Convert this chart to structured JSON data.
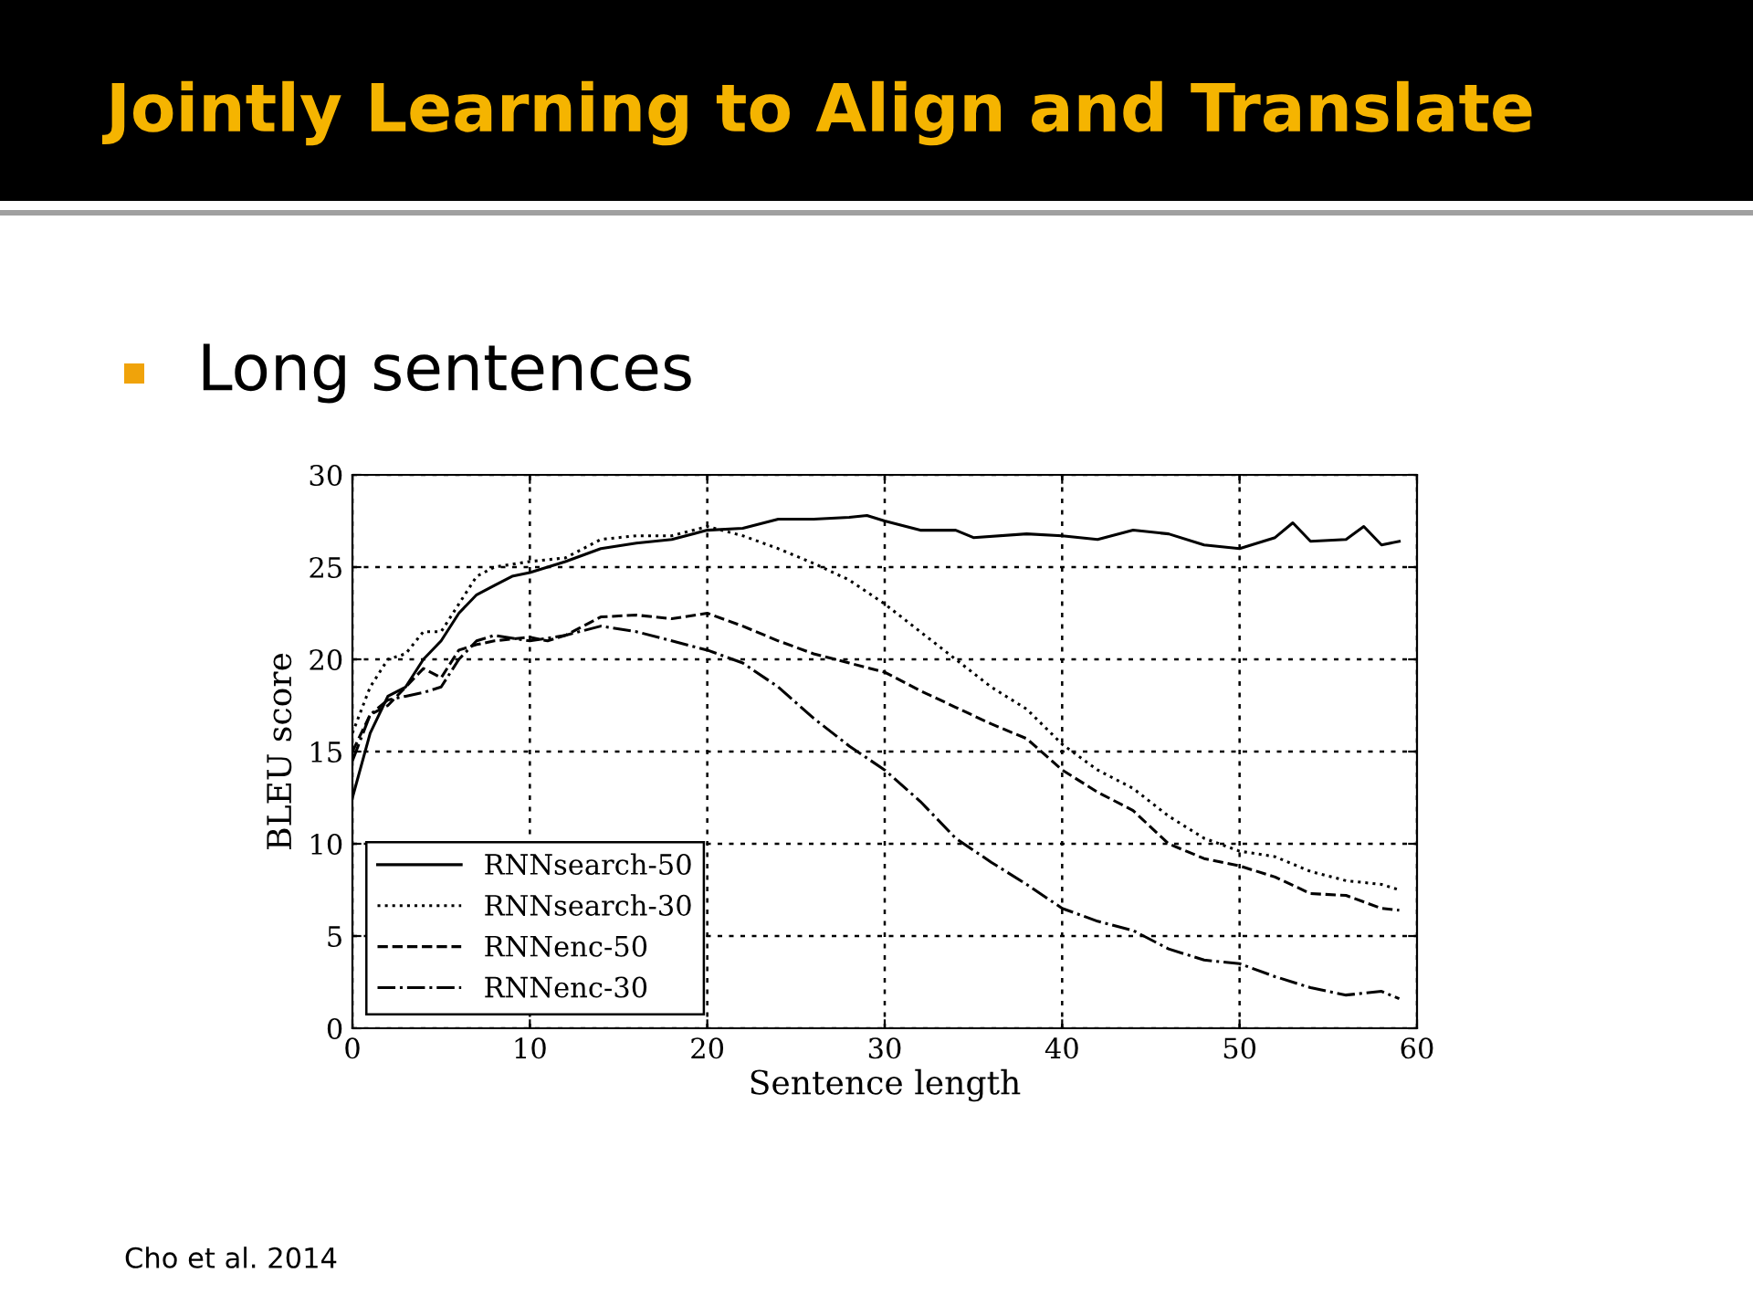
{
  "chart_data": {
    "type": "line",
    "title": "Jointly Learning to Align and Translate",
    "subtitle": "Long sentences",
    "xlabel": "Sentence length",
    "ylabel": "BLEU score",
    "annotations": [
      "Cho et al. 2014"
    ],
    "xlim": [
      0,
      60
    ],
    "ylim": [
      0,
      30
    ],
    "xticks": [
      0,
      10,
      20,
      30,
      40,
      50,
      60
    ],
    "yticks": [
      0,
      5,
      10,
      15,
      20,
      25,
      30
    ],
    "grid": true,
    "legend": "bottom left",
    "series": [
      {
        "name": "RNNsearch-50",
        "color": "#000000",
        "line_style": "solid",
        "x": [
          0,
          1,
          2,
          3,
          4,
          5,
          6,
          7,
          8,
          9,
          10,
          12,
          14,
          16,
          18,
          20,
          22,
          24,
          26,
          28,
          29,
          30,
          32,
          34,
          35,
          38,
          40,
          42,
          44,
          46,
          48,
          50,
          52,
          53,
          54,
          56,
          57,
          58,
          59
        ],
        "values": [
          12.5,
          16,
          18,
          18.5,
          20,
          21,
          22.5,
          23.5,
          24,
          24.5,
          24.7,
          25.3,
          26,
          26.3,
          26.5,
          27,
          27.1,
          27.6,
          27.6,
          27.7,
          27.8,
          27.5,
          27,
          27,
          26.6,
          26.8,
          26.7,
          26.5,
          27,
          26.8,
          26.2,
          26,
          26.6,
          27.4,
          26.4,
          26.5,
          27.2,
          26.2,
          26.4
        ]
      },
      {
        "name": "RNNsearch-30",
        "color": "#000000",
        "line_style": "dotted",
        "x": [
          0,
          1,
          2,
          3,
          4,
          5,
          6,
          7,
          8,
          10,
          12,
          14,
          16,
          18,
          20,
          22,
          24,
          26,
          28,
          30,
          32,
          34,
          36,
          38,
          40,
          42,
          44,
          46,
          48,
          50,
          52,
          54,
          56,
          58,
          59
        ],
        "values": [
          16,
          18.5,
          20,
          20.3,
          21.5,
          21.5,
          23,
          24.5,
          25,
          25.3,
          25.5,
          26.5,
          26.7,
          26.7,
          27.2,
          26.7,
          26,
          25.2,
          24.3,
          23,
          21.5,
          20,
          18.5,
          17.3,
          15.4,
          14,
          13,
          11.5,
          10.3,
          9.6,
          9.3,
          8.5,
          8,
          7.8,
          7.5
        ]
      },
      {
        "name": "RNNenc-50",
        "color": "#000000",
        "line_style": "dashed",
        "x": [
          0,
          1,
          2,
          3,
          4,
          5,
          6,
          7,
          8,
          10,
          11,
          12,
          14,
          16,
          18,
          20,
          22,
          24,
          26,
          28,
          30,
          32,
          34,
          36,
          38,
          40,
          42,
          44,
          46,
          48,
          50,
          52,
          54,
          56,
          58,
          59
        ],
        "values": [
          15,
          17,
          17.5,
          18.5,
          19.5,
          19,
          20.5,
          20.8,
          21,
          21.2,
          21,
          21.3,
          22.3,
          22.4,
          22.2,
          22.5,
          21.8,
          21,
          20.3,
          19.8,
          19.3,
          18.3,
          17.4,
          16.5,
          15.7,
          14,
          12.8,
          11.8,
          10,
          9.2,
          8.8,
          8.2,
          7.3,
          7.2,
          6.5,
          6.4
        ]
      },
      {
        "name": "RNNenc-30",
        "color": "#000000",
        "line_style": "dashdot",
        "x": [
          0,
          1,
          2,
          3,
          4,
          5,
          6,
          7,
          8,
          10,
          12,
          14,
          16,
          18,
          20,
          22,
          24,
          26,
          28,
          30,
          32,
          34,
          36,
          38,
          40,
          42,
          44,
          46,
          48,
          50,
          52,
          54,
          56,
          58,
          59
        ],
        "values": [
          14.5,
          17,
          17.8,
          18,
          18.2,
          18.5,
          20,
          21,
          21.3,
          21,
          21.3,
          21.8,
          21.5,
          21,
          20.5,
          19.8,
          18.5,
          16.8,
          15.3,
          14,
          12.3,
          10.3,
          9,
          7.8,
          6.5,
          5.8,
          5.3,
          4.3,
          3.7,
          3.5,
          2.8,
          2.2,
          1.8,
          2,
          1.6
        ]
      }
    ]
  }
}
